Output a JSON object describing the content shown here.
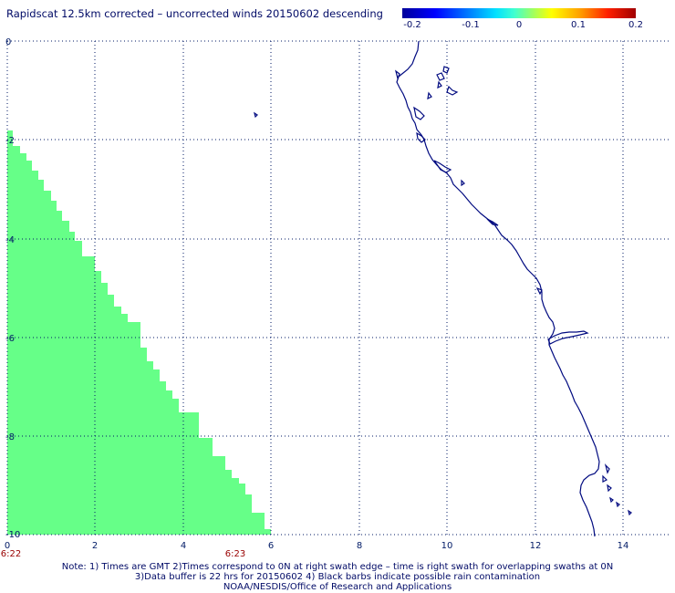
{
  "title": "Rapidscat 12.5km corrected – uncorrected winds 20150602 descending",
  "colorbar": {
    "ticks": [
      "-0.2",
      "-0.1",
      "0",
      "0.1",
      "0.2"
    ],
    "colors": [
      "#00009a",
      "#0000ff",
      "#00e0ff",
      "#a0ff60",
      "#ffff00",
      "#ffa000",
      "#ff2000",
      "#a00000"
    ]
  },
  "axes": {
    "x_ticks": [
      "0",
      "2",
      "4",
      "6",
      "8",
      "10",
      "12",
      "14"
    ],
    "y_ticks": [
      "0",
      "-2",
      "-4",
      "-6",
      "-8",
      "-10"
    ],
    "x_range": [
      0,
      14.5
    ],
    "y_range": [
      0,
      -10
    ],
    "grid": "dotted"
  },
  "time_labels": {
    "left": "6:22",
    "right": "6:23"
  },
  "swath": {
    "color": "#66ff88",
    "description_values": "stepped coverage, lower-left of plot"
  },
  "notes": {
    "line1": "Note: 1) Times are GMT 2)Times correspond to 0N at right swath edge – time is right swath for overlapping swaths at 0N",
    "line2": "3)Data buffer is 22 hrs for 20150602 4) Black barbs indicate possible rain contamination",
    "line3": "NOAA/NESDIS/Office of Research and Applications"
  }
}
